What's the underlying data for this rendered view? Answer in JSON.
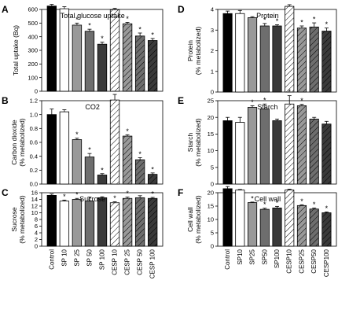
{
  "palette": {
    "black": "#000000",
    "white": "#ffffff",
    "light_gray": "#999999",
    "mid_gray": "#6e6e6e",
    "dark_gray": "#3a3a3a",
    "hatch": "#000000"
  },
  "chart_data": [
    {
      "panel": "A",
      "type": "bar",
      "title": "Total glucose uptake",
      "ylabel": "Total uptake (Bq)",
      "ylim": [
        0,
        600
      ],
      "yticks": [
        0,
        100,
        200,
        300,
        400,
        500,
        600
      ],
      "categories": [
        "Control",
        "SP 10",
        "SP 25",
        "SP 50",
        "SP 100",
        "CESP 10",
        "CESP 25",
        "CESP 50",
        "CESP 100"
      ],
      "values": [
        625,
        605,
        485,
        440,
        345,
        598,
        495,
        405,
        372
      ],
      "errors": [
        12,
        15,
        15,
        15,
        15,
        10,
        10,
        22,
        15
      ],
      "significant": [
        false,
        false,
        true,
        true,
        true,
        false,
        true,
        true,
        true
      ],
      "show_xlabels": false
    },
    {
      "panel": "B",
      "type": "bar",
      "title": "CO2",
      "ylabel": "Carbon dioxide (% metabolized)",
      "ylim": [
        0,
        1.2
      ],
      "yticks": [
        0.0,
        0.2,
        0.4,
        0.6,
        0.8,
        1.0,
        1.2
      ],
      "categories": [
        "Control",
        "SP 10",
        "SP 25",
        "SP 50",
        "SP 100",
        "CESP 10",
        "CESP 25",
        "CESP 50",
        "CESP 100"
      ],
      "values": [
        1.0,
        1.04,
        0.64,
        0.39,
        0.13,
        1.21,
        0.69,
        0.35,
        0.14
      ],
      "errors": [
        0.08,
        0.03,
        0.02,
        0.05,
        0.02,
        0.08,
        0.02,
        0.03,
        0.02
      ],
      "significant": [
        false,
        false,
        true,
        true,
        true,
        false,
        true,
        true,
        true
      ],
      "show_xlabels": false
    },
    {
      "panel": "C",
      "type": "bar",
      "title": "Sucrose",
      "ylabel": "Sucrose (% metabolized)",
      "ylim": [
        0,
        16
      ],
      "yticks": [
        0,
        2,
        4,
        6,
        8,
        10,
        12,
        14,
        16
      ],
      "categories": [
        "Control",
        "SP 10",
        "SP 25",
        "SP 50",
        "SP 100",
        "CESP 10",
        "CESP 25",
        "CESP 50",
        "CESP 100"
      ],
      "values": [
        15.2,
        13.5,
        14.0,
        13.5,
        14.5,
        13.0,
        14.3,
        14.5,
        14.3
      ],
      "errors": [
        0.4,
        0.3,
        0.3,
        1.2,
        0.3,
        0.3,
        0.4,
        0.6,
        0.3
      ],
      "significant": [
        false,
        true,
        true,
        false,
        false,
        true,
        true,
        false,
        true
      ],
      "show_xlabels": true
    },
    {
      "panel": "D",
      "type": "bar",
      "title": "Protein",
      "ylabel": "Protein (% metabolized)",
      "ylim": [
        0,
        4
      ],
      "yticks": [
        0,
        1,
        2,
        3,
        4
      ],
      "categories": [
        "Control",
        "SP10",
        "SP25",
        "SP50",
        "SP100",
        "CESP10",
        "CESP25",
        "CESP50",
        "CESP100"
      ],
      "values": [
        3.8,
        3.8,
        3.6,
        3.2,
        3.2,
        4.15,
        3.1,
        3.15,
        2.95
      ],
      "errors": [
        0.12,
        0.15,
        0.05,
        0.12,
        0.06,
        0.08,
        0.1,
        0.2,
        0.15
      ],
      "significant": [
        false,
        false,
        false,
        true,
        true,
        false,
        true,
        true,
        true
      ],
      "show_xlabels": false
    },
    {
      "panel": "E",
      "type": "bar",
      "title": "Starch",
      "ylabel": "Starch (% metabolized)",
      "ylim": [
        0,
        25
      ],
      "yticks": [
        0,
        5,
        10,
        15,
        20,
        25
      ],
      "categories": [
        "Control",
        "SP10",
        "SP25",
        "SP50",
        "SP100",
        "CESP10",
        "CESP25",
        "CESP50",
        "CESP100"
      ],
      "values": [
        19.0,
        18.5,
        23.0,
        22.5,
        19.0,
        24.0,
        23.5,
        19.5,
        18.0
      ],
      "errors": [
        1.0,
        1.5,
        0.5,
        1.5,
        0.5,
        2.5,
        0.4,
        0.5,
        0.8
      ],
      "significant": [
        false,
        false,
        true,
        true,
        false,
        true,
        true,
        false,
        false
      ],
      "show_xlabels": false
    },
    {
      "panel": "F",
      "type": "bar",
      "title": "Cell wall",
      "ylabel": "Cell wall (% metabolized)",
      "ylim": [
        0,
        20
      ],
      "yticks": [
        0,
        5,
        10,
        15,
        20
      ],
      "categories": [
        "Control",
        "SP10",
        "SP25",
        "SP50",
        "SP100",
        "CESP10",
        "CESP25",
        "CESP50",
        "CESP100"
      ],
      "values": [
        21.5,
        21.0,
        16.3,
        13.8,
        14.3,
        21.0,
        15.2,
        13.9,
        12.5
      ],
      "errors": [
        0.8,
        0.2,
        0.2,
        0.4,
        0.6,
        0.3,
        0.3,
        0.4,
        0.3
      ],
      "significant": [
        false,
        false,
        true,
        true,
        true,
        false,
        true,
        true,
        true
      ],
      "show_xlabels": true
    }
  ]
}
